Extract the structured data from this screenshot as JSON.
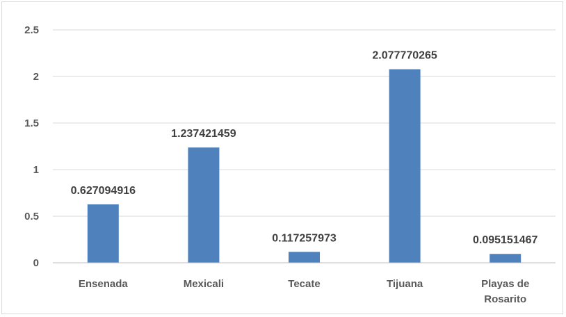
{
  "chart_data": {
    "type": "bar",
    "title": "",
    "xlabel": "",
    "ylabel": "",
    "categories": [
      [
        "Ensenada"
      ],
      [
        "Mexicali"
      ],
      [
        "Tecate"
      ],
      [
        "Tijuana"
      ],
      [
        "Playas de",
        "Rosarito"
      ]
    ],
    "values": [
      0.627094916,
      1.237421459,
      0.117257973,
      2.077770265,
      0.095151467
    ],
    "data_labels": [
      "0.627094916",
      "1.237421459",
      "0.117257973",
      "2.077770265",
      "0.095151467"
    ],
    "ylim": [
      0,
      2.5
    ],
    "yticks": [
      "0",
      "0.5",
      "1",
      "1.5",
      "2",
      "2.5"
    ],
    "grid": true,
    "legend": "none",
    "colors": {
      "bar": "#4f81bd",
      "grid": "#d9d9d9",
      "axis": "#bfbfbf",
      "text": "#595959",
      "data_label": "#404040"
    }
  }
}
